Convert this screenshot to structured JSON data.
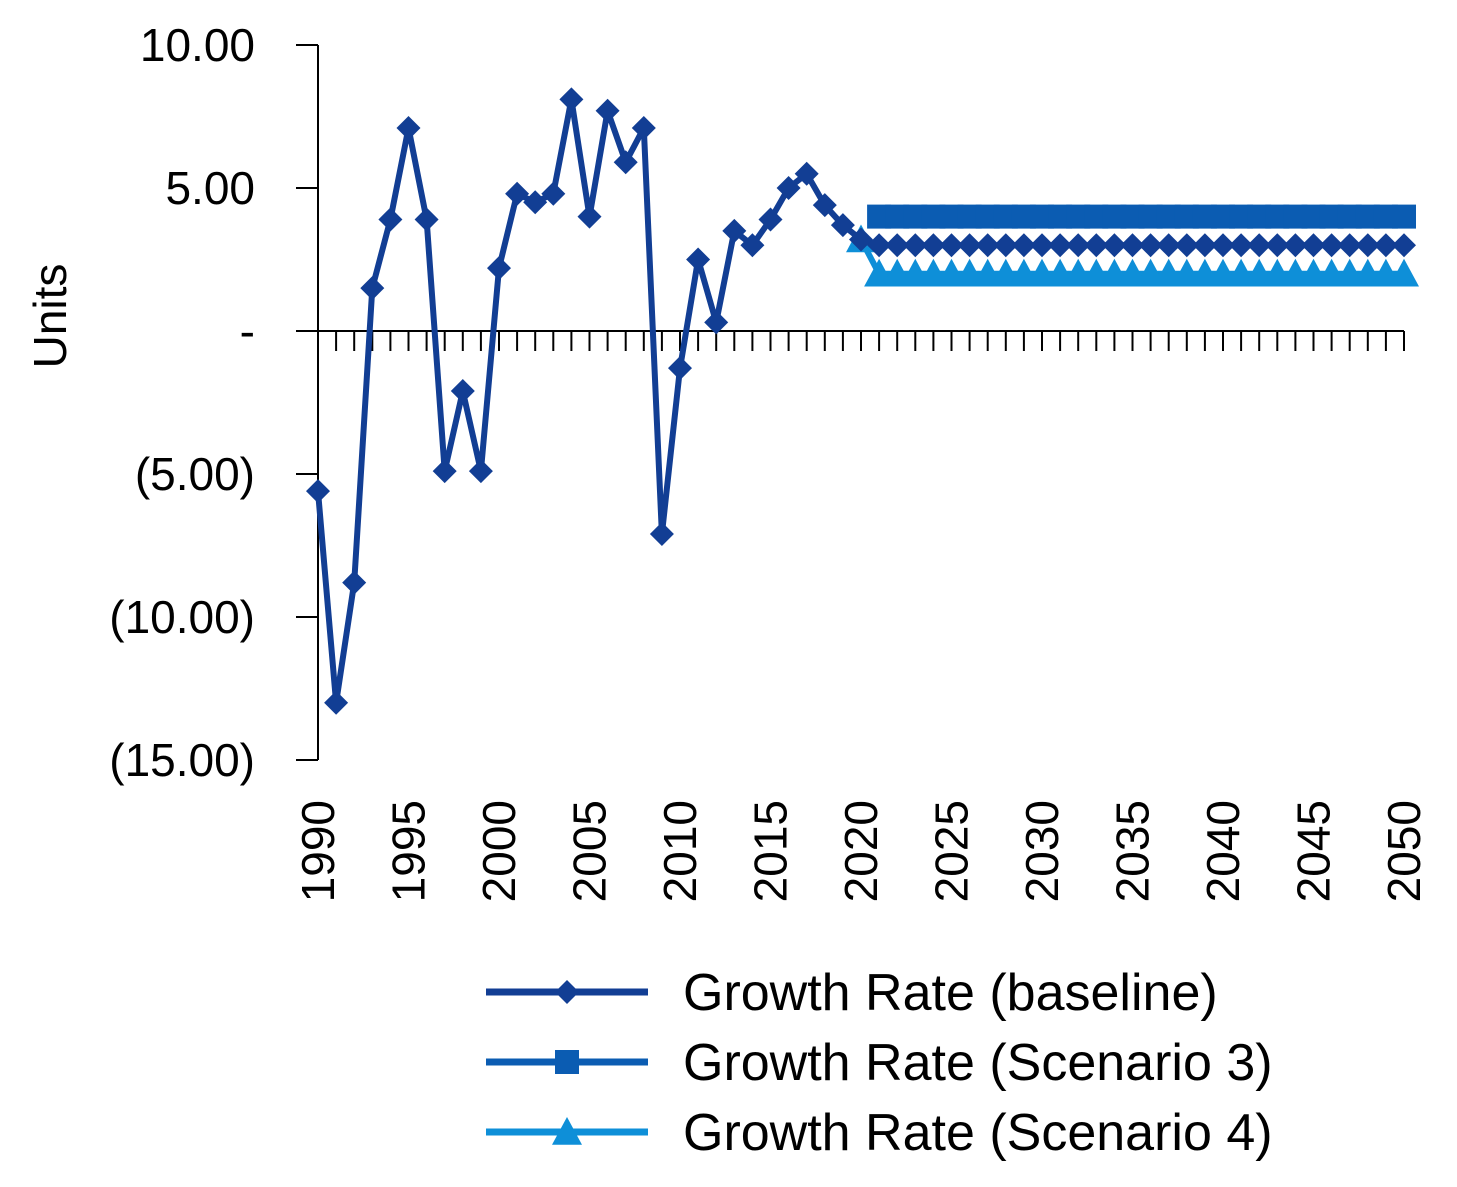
{
  "chart_data": {
    "type": "line",
    "title": "",
    "xlabel": "",
    "ylabel": "Units",
    "ylim": [
      -15,
      10
    ],
    "xlim": [
      1990,
      2050
    ],
    "grid": false,
    "legend_position": "bottom-right",
    "y_ticks": [
      {
        "value": 10,
        "label": "10.00"
      },
      {
        "value": 5,
        "label": "5.00"
      },
      {
        "value": 0,
        "label": "-"
      },
      {
        "value": -5,
        "label": "(5.00)"
      },
      {
        "value": -10,
        "label": "(10.00)"
      },
      {
        "value": -15,
        "label": "(15.00)"
      }
    ],
    "x_ticks": [
      {
        "value": 1990,
        "label": "1990"
      },
      {
        "value": 1995,
        "label": "1995"
      },
      {
        "value": 2000,
        "label": "2000"
      },
      {
        "value": 2005,
        "label": "2005"
      },
      {
        "value": 2010,
        "label": "2010"
      },
      {
        "value": 2015,
        "label": "2015"
      },
      {
        "value": 2020,
        "label": "2020"
      },
      {
        "value": 2025,
        "label": "2025"
      },
      {
        "value": 2030,
        "label": "2030"
      },
      {
        "value": 2035,
        "label": "2035"
      },
      {
        "value": 2040,
        "label": "2040"
      },
      {
        "value": 2045,
        "label": "2045"
      },
      {
        "value": 2050,
        "label": "2050"
      }
    ],
    "series": [
      {
        "name": "Growth Rate (baseline)",
        "color": "#123e94",
        "marker": "diamond",
        "x": [
          1990,
          1991,
          1992,
          1993,
          1994,
          1995,
          1996,
          1997,
          1998,
          1999,
          2000,
          2001,
          2002,
          2003,
          2004,
          2005,
          2006,
          2007,
          2008,
          2009,
          2010,
          2011,
          2012,
          2013,
          2014,
          2015,
          2016,
          2017,
          2018,
          2019,
          2020,
          2021,
          2022,
          2023,
          2024,
          2025,
          2026,
          2027,
          2028,
          2029,
          2030,
          2031,
          2032,
          2033,
          2034,
          2035,
          2036,
          2037,
          2038,
          2039,
          2040,
          2041,
          2042,
          2043,
          2044,
          2045,
          2046,
          2047,
          2048,
          2049,
          2050
        ],
        "values": [
          -5.6,
          -13.0,
          -8.8,
          1.5,
          3.9,
          7.1,
          3.9,
          -4.9,
          -2.1,
          -4.9,
          2.2,
          4.8,
          4.5,
          4.8,
          8.1,
          4.0,
          7.7,
          5.9,
          7.1,
          -7.1,
          -1.3,
          2.5,
          0.3,
          3.5,
          3.0,
          3.9,
          5.0,
          5.5,
          4.4,
          3.7,
          3.2,
          3.0,
          3.0,
          3.0,
          3.0,
          3.0,
          3.0,
          3.0,
          3.0,
          3.0,
          3.0,
          3.0,
          3.0,
          3.0,
          3.0,
          3.0,
          3.0,
          3.0,
          3.0,
          3.0,
          3.0,
          3.0,
          3.0,
          3.0,
          3.0,
          3.0,
          3.0,
          3.0,
          3.0,
          3.0,
          3.0
        ]
      },
      {
        "name": "Growth Rate (Scenario 3)",
        "color": "#0b5cb2",
        "marker": "square",
        "x": [
          2021,
          2022,
          2023,
          2024,
          2025,
          2026,
          2027,
          2028,
          2029,
          2030,
          2031,
          2032,
          2033,
          2034,
          2035,
          2036,
          2037,
          2038,
          2039,
          2040,
          2041,
          2042,
          2043,
          2044,
          2045,
          2046,
          2047,
          2048,
          2049,
          2050
        ],
        "values": [
          4.0,
          4.0,
          4.0,
          4.0,
          4.0,
          4.0,
          4.0,
          4.0,
          4.0,
          4.0,
          4.0,
          4.0,
          4.0,
          4.0,
          4.0,
          4.0,
          4.0,
          4.0,
          4.0,
          4.0,
          4.0,
          4.0,
          4.0,
          4.0,
          4.0,
          4.0,
          4.0,
          4.0,
          4.0,
          4.0
        ]
      },
      {
        "name": "Growth Rate (Scenario 4)",
        "color": "#0e8fd8",
        "marker": "triangle",
        "x": [
          2020,
          2021,
          2022,
          2023,
          2024,
          2025,
          2026,
          2027,
          2028,
          2029,
          2030,
          2031,
          2032,
          2033,
          2034,
          2035,
          2036,
          2037,
          2038,
          2039,
          2040,
          2041,
          2042,
          2043,
          2044,
          2045,
          2046,
          2047,
          2048,
          2049,
          2050
        ],
        "values": [
          3.2,
          2.0,
          2.0,
          2.0,
          2.0,
          2.0,
          2.0,
          2.0,
          2.0,
          2.0,
          2.0,
          2.0,
          2.0,
          2.0,
          2.0,
          2.0,
          2.0,
          2.0,
          2.0,
          2.0,
          2.0,
          2.0,
          2.0,
          2.0,
          2.0,
          2.0,
          2.0,
          2.0,
          2.0,
          2.0,
          2.0
        ]
      }
    ]
  }
}
